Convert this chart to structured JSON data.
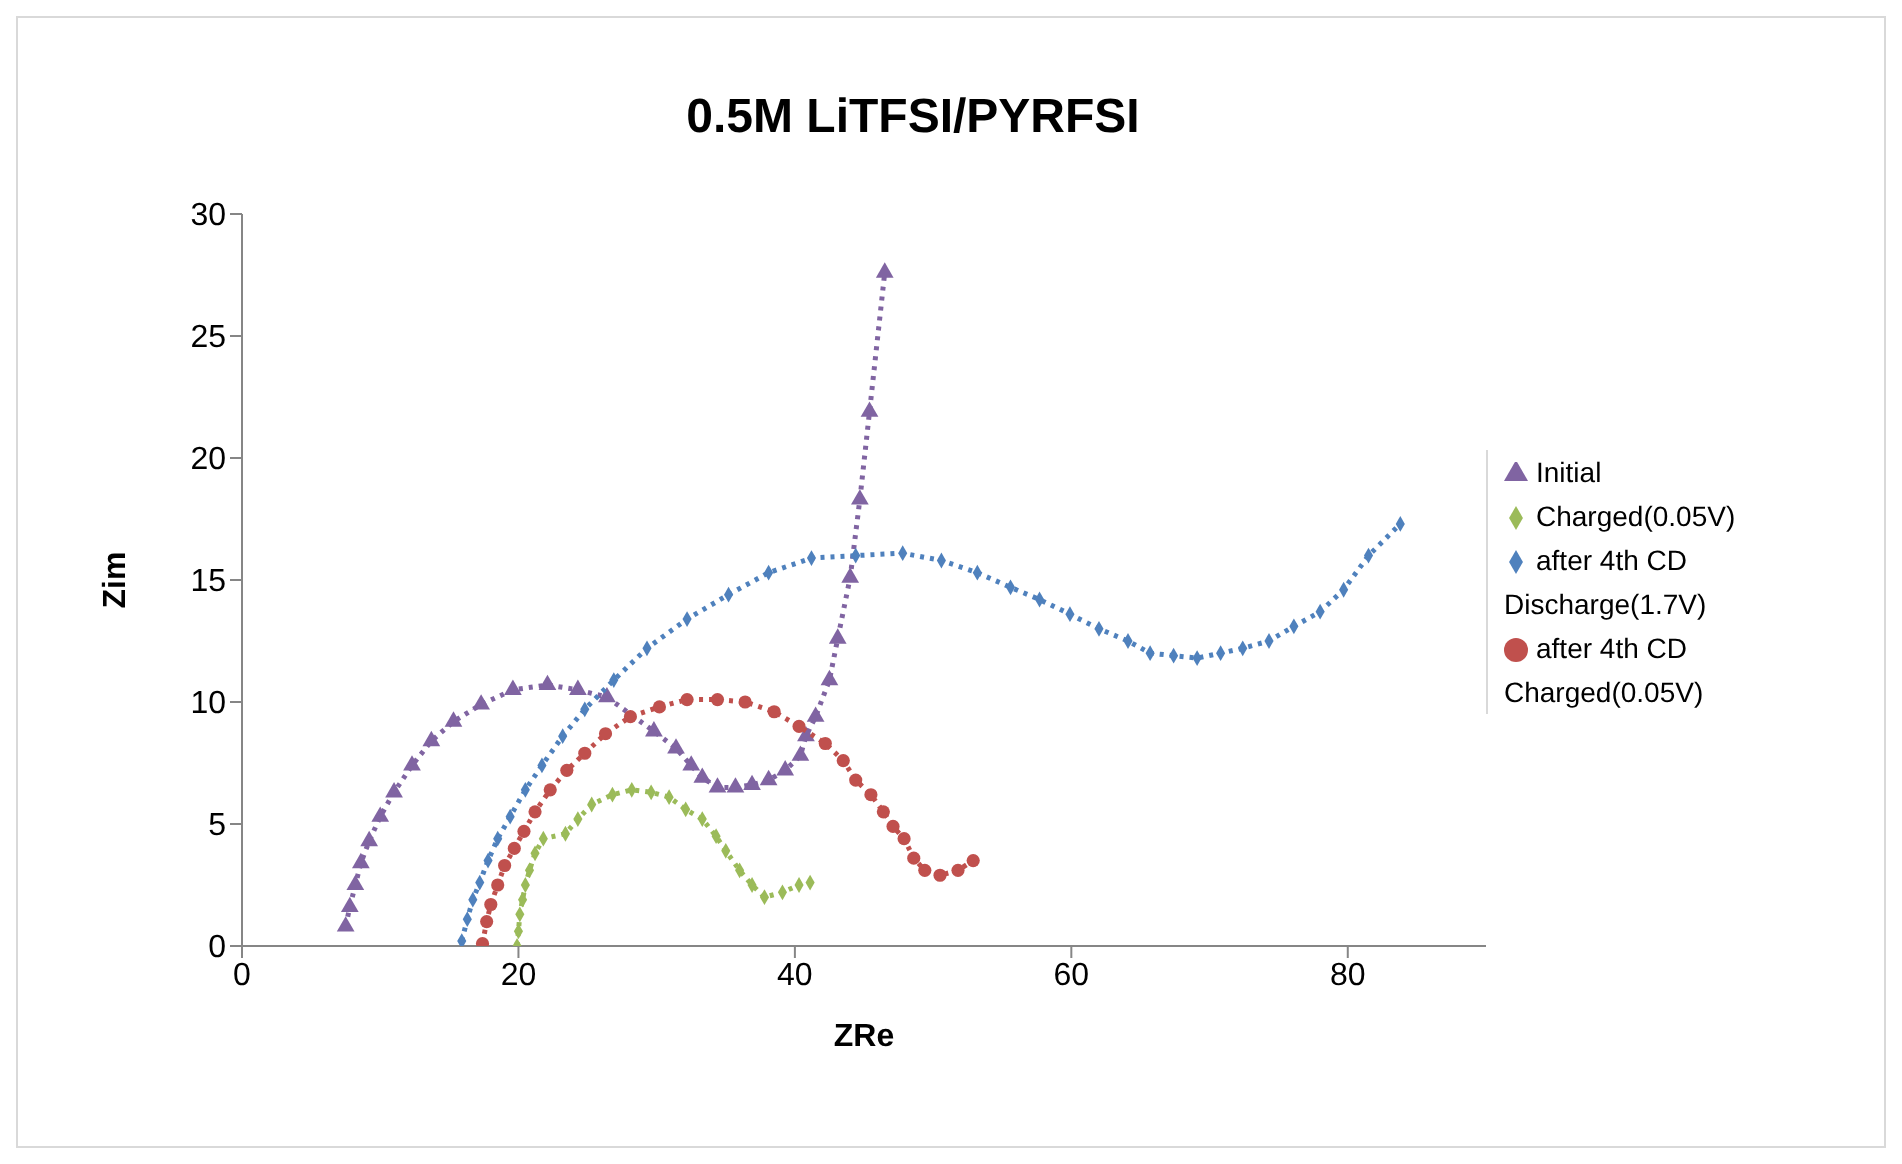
{
  "chart_data": {
    "type": "line",
    "title": "0.5M LiTFSI/PYRFSI",
    "xlabel": "ZRe",
    "ylabel": "Zim",
    "xlim": [
      0,
      90
    ],
    "xticks": [
      0,
      20,
      40,
      60,
      80
    ],
    "ylim": [
      0,
      30
    ],
    "yticks": [
      0,
      5,
      10,
      15,
      20,
      25,
      30
    ],
    "grid": false,
    "legend": "right",
    "line_style": "dotted",
    "series": [
      {
        "name": "Initial",
        "color": "#8064a2",
        "marker": "triangle",
        "x": [
          7.5,
          7.8,
          8.2,
          8.6,
          9.2,
          10.0,
          11.0,
          12.3,
          13.7,
          15.3,
          17.3,
          19.6,
          22.1,
          24.3,
          26.4,
          29.8,
          31.4,
          32.5,
          33.3,
          34.4,
          35.7,
          36.9,
          38.1,
          39.3,
          40.4,
          40.8,
          41.5,
          42.5,
          43.1,
          44.0,
          44.7,
          45.4,
          46.5
        ],
        "values": [
          0.8,
          1.6,
          2.5,
          3.4,
          4.3,
          5.3,
          6.3,
          7.4,
          8.4,
          9.2,
          9.9,
          10.5,
          10.7,
          10.5,
          10.2,
          8.8,
          8.1,
          7.4,
          6.9,
          6.5,
          6.5,
          6.6,
          6.8,
          7.2,
          7.8,
          8.6,
          9.4,
          10.9,
          12.6,
          15.1,
          18.3,
          21.9,
          27.6
        ]
      },
      {
        "name": "Charged(0.05V)",
        "color": "#9bbb59",
        "marker": "diamond",
        "x": [
          19.9,
          20.0,
          20.1,
          20.3,
          20.5,
          20.8,
          21.2,
          21.8,
          23.4,
          24.3,
          25.3,
          26.8,
          28.2,
          29.6,
          30.9,
          32.1,
          33.3,
          34.3,
          35.0,
          36.0,
          36.9,
          37.8,
          39.1,
          40.3,
          41.1
        ],
        "values": [
          0,
          0.6,
          1.3,
          1.9,
          2.5,
          3.1,
          3.8,
          4.4,
          4.6,
          5.2,
          5.8,
          6.2,
          6.4,
          6.3,
          6.1,
          5.6,
          5.2,
          4.5,
          3.9,
          3.1,
          2.5,
          2.0,
          2.2,
          2.5,
          2.6
        ]
      },
      {
        "name": "after 4th CD Discharge(1.7V)",
        "color": "#4f81bd",
        "marker": "diamond",
        "x": [
          15.9,
          16.3,
          16.7,
          17.2,
          17.8,
          18.5,
          19.4,
          20.5,
          21.7,
          23.2,
          24.8,
          26.9,
          29.3,
          32.2,
          35.2,
          38.1,
          41.2,
          44.4,
          47.8,
          50.6,
          53.2,
          55.6,
          57.7,
          59.9,
          62.0,
          64.1,
          65.7,
          67.4,
          69.1,
          70.8,
          72.4,
          74.3,
          76.1,
          78.0,
          79.7,
          81.5,
          83.8
        ],
        "values": [
          0.2,
          1.1,
          1.9,
          2.6,
          3.5,
          4.4,
          5.3,
          6.4,
          7.4,
          8.6,
          9.7,
          10.9,
          12.2,
          13.4,
          14.4,
          15.3,
          15.9,
          16.0,
          16.1,
          15.8,
          15.3,
          14.7,
          14.2,
          13.6,
          13.0,
          12.5,
          12.0,
          11.9,
          11.8,
          12.0,
          12.2,
          12.5,
          13.1,
          13.7,
          14.6,
          16.0,
          17.3
        ]
      },
      {
        "name": "after 4th CD Charged(0.05V)",
        "color": "#c0504d",
        "marker": "circle",
        "x": [
          17.4,
          17.7,
          18.0,
          18.5,
          19.0,
          19.7,
          20.4,
          21.2,
          22.3,
          23.5,
          24.8,
          26.3,
          28.1,
          30.2,
          32.2,
          34.4,
          36.4,
          38.5,
          40.3,
          42.2,
          43.5,
          44.4,
          45.5,
          46.4,
          47.1,
          47.9,
          48.6,
          49.4,
          50.5,
          51.8,
          52.9
        ],
        "values": [
          0.1,
          1.0,
          1.7,
          2.5,
          3.3,
          4.0,
          4.7,
          5.5,
          6.4,
          7.2,
          7.9,
          8.7,
          9.4,
          9.8,
          10.1,
          10.1,
          10.0,
          9.6,
          9.0,
          8.3,
          7.6,
          6.8,
          6.2,
          5.5,
          4.9,
          4.4,
          3.6,
          3.1,
          2.9,
          3.1,
          3.5
        ]
      }
    ]
  }
}
